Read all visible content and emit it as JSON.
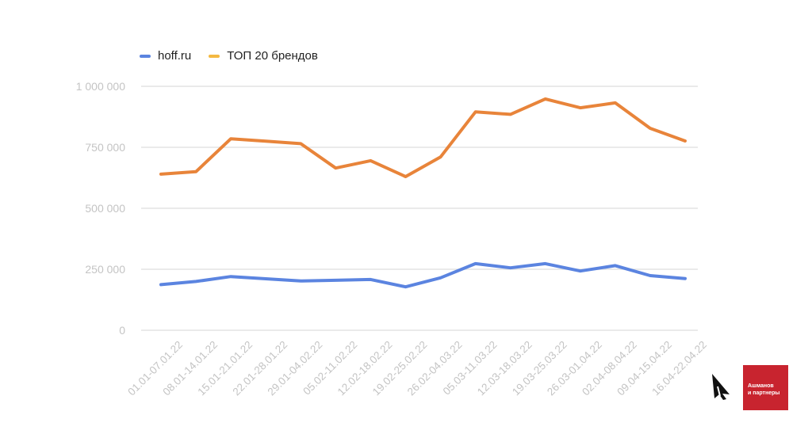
{
  "legend": [
    {
      "label": "hoff.ru",
      "color": "#5b84e0"
    },
    {
      "label": "ТОП 20 брендов",
      "color": "#f4b942"
    }
  ],
  "logo": {
    "line1": "Ашманов",
    "line2": "и партнеры",
    "color": "#c8242f",
    "icon": "arrow-a-logo-icon"
  },
  "chart_data": {
    "type": "line",
    "title": "",
    "xlabel": "",
    "ylabel": "",
    "grid": true,
    "legend_position": "top-left",
    "ylim": [
      0,
      1000000
    ],
    "yticks": [
      0,
      250000,
      500000,
      750000,
      1000000
    ],
    "ytick_labels": [
      "0",
      "250 000",
      "500 000",
      "750 000",
      "1 000 000"
    ],
    "categories": [
      "01.01-07.01.22",
      "08.01-14.01.22",
      "15.01-21.01.22",
      "22.01-28.01.22",
      "29.01-04.02.22",
      "05.02-11.02.22",
      "12.02-18.02.22",
      "19.02-25.02.22",
      "26.02-04.03.22",
      "05.03-11.03.22",
      "12.03-18.03.22",
      "19.03-25.03.22",
      "26.03-01.04.22",
      "02.04-08.04.22",
      "09.04-15.04.22",
      "16.04-22.04.22"
    ],
    "series": [
      {
        "name": "hoff.ru",
        "color": "#5b84e0",
        "values": [
          187000,
          200000,
          220000,
          211000,
          202000,
          205000,
          208000,
          178000,
          215000,
          273000,
          256000,
          273000,
          243000,
          265000,
          224000,
          212000
        ]
      },
      {
        "name": "ТОП 20 брендов",
        "color": "#e8843a",
        "values": [
          640000,
          650000,
          785000,
          775000,
          765000,
          665000,
          695000,
          630000,
          710000,
          895000,
          885000,
          948000,
          912000,
          932000,
          828000,
          776000
        ]
      }
    ]
  }
}
